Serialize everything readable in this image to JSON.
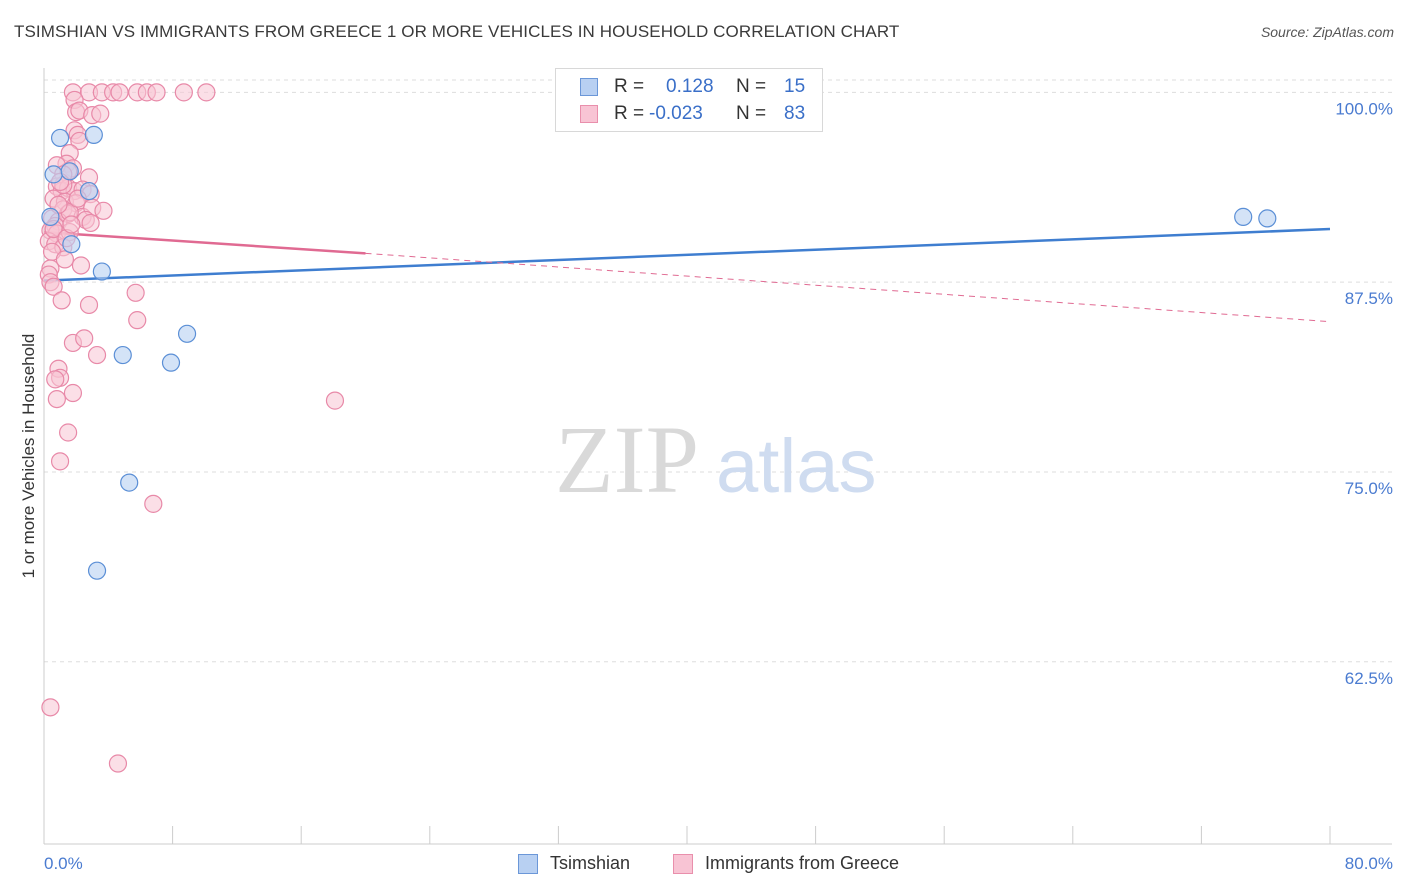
{
  "header": {
    "title": "TSIMSHIAN VS IMMIGRANTS FROM GREECE 1 OR MORE VEHICLES IN HOUSEHOLD CORRELATION CHART",
    "source": "Source: ZipAtlas.com"
  },
  "watermark": {
    "zip": "ZIP",
    "atlas": "atlas"
  },
  "legend": {
    "rows": [
      {
        "r_label": "R =",
        "r_value": "0.128",
        "n_label": "N =",
        "n_value": "15"
      },
      {
        "r_label": "R =",
        "r_value": "-0.023",
        "n_label": "N =",
        "n_value": "83"
      }
    ]
  },
  "bottom_legend": [
    "Tsimshian",
    "Immigrants from Greece"
  ],
  "colors": {
    "blue_fill": "#b8d0f2",
    "blue_stroke": "#5b8fd6",
    "blue_line": "#3f7ed0",
    "pink_fill": "#f8c4d4",
    "pink_stroke": "#e889a8",
    "pink_line": "#e06a92",
    "tick": "#4a7bd0",
    "grid": "#dddddd"
  },
  "chart_data": {
    "type": "scatter",
    "title": "TSIMSHIAN VS IMMIGRANTS FROM GREECE 1 OR MORE VEHICLES IN HOUSEHOLD CORRELATION CHART",
    "xlabel": "",
    "ylabel": "1 or more Vehicles in Household",
    "xlim": [
      0,
      80
    ],
    "ylim": [
      50.5,
      102
    ],
    "x_tick_labels": [
      "0.0%",
      "80.0%"
    ],
    "y_ticks": [
      62.5,
      75.0,
      87.5,
      100.0
    ],
    "y_tick_labels": [
      "62.5%",
      "75.0%",
      "87.5%",
      "100.0%"
    ],
    "grid": true,
    "legend_position": "top-center",
    "series": [
      {
        "name": "Tsimshian",
        "color": "#5b8fd6",
        "points": [
          [
            1.0,
            97.0
          ],
          [
            3.1,
            97.2
          ],
          [
            0.6,
            94.6
          ],
          [
            1.6,
            94.8
          ],
          [
            2.8,
            93.5
          ],
          [
            0.4,
            91.8
          ],
          [
            1.7,
            90.0
          ],
          [
            3.6,
            88.2
          ],
          [
            8.9,
            84.1
          ],
          [
            4.9,
            82.7
          ],
          [
            7.9,
            82.2
          ],
          [
            5.3,
            74.3
          ],
          [
            3.3,
            68.5
          ],
          [
            74.6,
            91.8
          ],
          [
            76.1,
            91.7
          ]
        ],
        "trend": {
          "x": [
            0,
            80
          ],
          "y": [
            87.6,
            91.0
          ],
          "style": "solid"
        }
      },
      {
        "name": "Immigrants from Greece",
        "color": "#e889a8",
        "points": [
          [
            1.8,
            100.0
          ],
          [
            2.8,
            100.0
          ],
          [
            3.6,
            100.0
          ],
          [
            4.3,
            100.0
          ],
          [
            4.7,
            100.0
          ],
          [
            5.8,
            100.0
          ],
          [
            6.4,
            100.0
          ],
          [
            7.0,
            100.0
          ],
          [
            8.7,
            100.0
          ],
          [
            10.1,
            100.0
          ],
          [
            1.9,
            99.5
          ],
          [
            2.0,
            98.7
          ],
          [
            2.2,
            98.8
          ],
          [
            3.0,
            98.5
          ],
          [
            3.5,
            98.6
          ],
          [
            1.9,
            97.5
          ],
          [
            2.1,
            97.2
          ],
          [
            2.2,
            96.8
          ],
          [
            1.6,
            96.0
          ],
          [
            1.4,
            95.3
          ],
          [
            1.8,
            95.0
          ],
          [
            1.5,
            94.8
          ],
          [
            0.8,
            95.2
          ],
          [
            1.2,
            94.6
          ],
          [
            2.8,
            94.4
          ],
          [
            0.8,
            93.8
          ],
          [
            1.1,
            93.5
          ],
          [
            1.5,
            93.7
          ],
          [
            1.9,
            93.5
          ],
          [
            2.4,
            93.6
          ],
          [
            2.9,
            93.3
          ],
          [
            0.6,
            93.0
          ],
          [
            1.3,
            92.8
          ],
          [
            2.0,
            92.7
          ],
          [
            1.2,
            92.3
          ],
          [
            1.5,
            92.0
          ],
          [
            2.4,
            91.8
          ],
          [
            3.0,
            92.4
          ],
          [
            3.7,
            92.2
          ],
          [
            0.5,
            91.7
          ],
          [
            0.9,
            91.5
          ],
          [
            0.7,
            91.2
          ],
          [
            2.6,
            91.6
          ],
          [
            2.9,
            91.4
          ],
          [
            0.4,
            90.9
          ],
          [
            0.8,
            90.7
          ],
          [
            1.6,
            90.8
          ],
          [
            0.3,
            90.2
          ],
          [
            0.7,
            90.0
          ],
          [
            1.2,
            89.8
          ],
          [
            0.5,
            89.5
          ],
          [
            1.3,
            89.0
          ],
          [
            0.4,
            88.4
          ],
          [
            0.3,
            88.0
          ],
          [
            0.4,
            87.5
          ],
          [
            2.3,
            88.6
          ],
          [
            0.6,
            87.2
          ],
          [
            1.1,
            86.3
          ],
          [
            2.8,
            86.0
          ],
          [
            5.7,
            86.8
          ],
          [
            5.8,
            85.0
          ],
          [
            1.8,
            83.5
          ],
          [
            2.5,
            83.8
          ],
          [
            3.3,
            82.7
          ],
          [
            0.9,
            81.8
          ],
          [
            1.0,
            81.2
          ],
          [
            0.7,
            81.1
          ],
          [
            1.8,
            80.2
          ],
          [
            0.8,
            79.8
          ],
          [
            18.1,
            79.7
          ],
          [
            1.5,
            77.6
          ],
          [
            1.0,
            75.7
          ],
          [
            6.8,
            72.9
          ],
          [
            0.4,
            59.5
          ],
          [
            4.6,
            55.8
          ],
          [
            1.2,
            93.9
          ],
          [
            1.6,
            92.1
          ],
          [
            0.6,
            91.0
          ],
          [
            1.4,
            90.4
          ],
          [
            2.1,
            93.0
          ],
          [
            1.0,
            94.1
          ],
          [
            0.9,
            92.6
          ],
          [
            1.7,
            91.3
          ]
        ],
        "trend": {
          "x": [
            0,
            20
          ],
          "y": [
            90.8,
            89.4
          ],
          "style": "solid",
          "extended_to": [
            80,
            84.9
          ]
        }
      }
    ]
  }
}
